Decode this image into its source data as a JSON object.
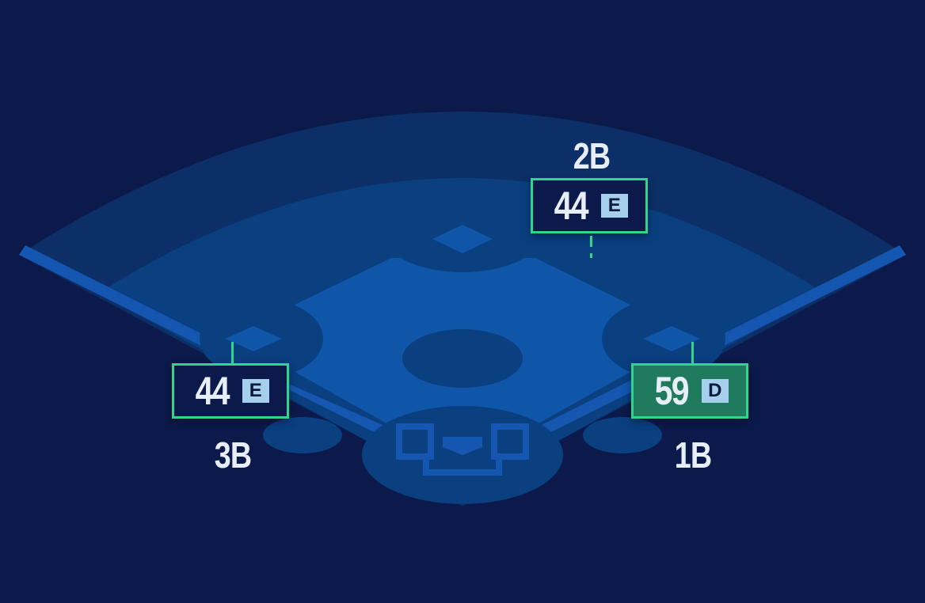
{
  "colors": {
    "background": "#0b1a4a",
    "border": "#2fd68a",
    "highlight": "#1f7a5e",
    "grade_badge": "#a6cfee"
  },
  "positions": [
    {
      "label": "2B",
      "rating": "44",
      "grade": "E"
    },
    {
      "label": "3B",
      "rating": "44",
      "grade": "E"
    },
    {
      "label": "1B",
      "rating": "59",
      "grade": "D",
      "highlighted": true
    }
  ]
}
